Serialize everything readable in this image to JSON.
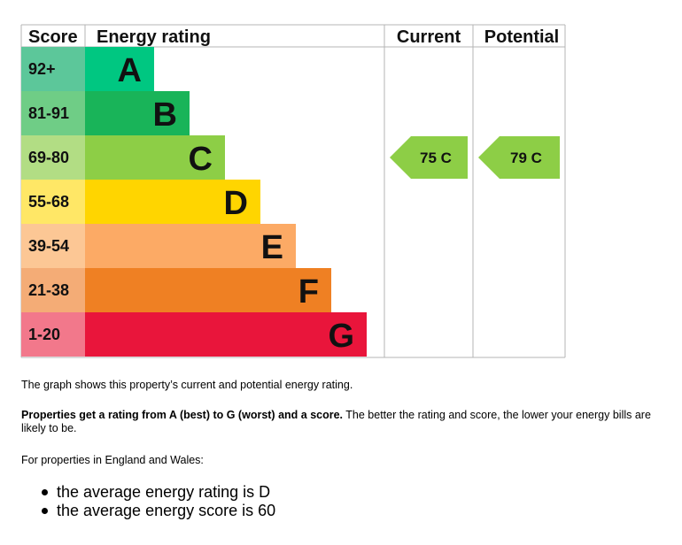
{
  "chart_data": {
    "type": "energy-rating",
    "headers": {
      "score": "Score",
      "rating": "Energy rating",
      "current": "Current",
      "potential": "Potential"
    },
    "bands": [
      {
        "score": "92+",
        "letter": "A",
        "score_color": "#5cc79a",
        "bar_color": "#00c781"
      },
      {
        "score": "81-91",
        "letter": "B",
        "score_color": "#6fcd86",
        "bar_color": "#19b459"
      },
      {
        "score": "69-80",
        "letter": "C",
        "score_color": "#b2dd84",
        "bar_color": "#8dce46"
      },
      {
        "score": "55-68",
        "letter": "D",
        "score_color": "#ffe766",
        "bar_color": "#ffd500"
      },
      {
        "score": "39-54",
        "letter": "E",
        "score_color": "#fcc795",
        "bar_color": "#fcaa65"
      },
      {
        "score": "21-38",
        "letter": "F",
        "score_color": "#f4ac76",
        "bar_color": "#ef8023"
      },
      {
        "score": "1-20",
        "letter": "G",
        "score_color": "#f2788b",
        "bar_color": "#e9153b"
      }
    ],
    "current": {
      "value": 75,
      "letter": "C",
      "label": "75  C",
      "color": "#8dce46"
    },
    "potential": {
      "value": 79,
      "letter": "C",
      "label": "79  C",
      "color": "#8dce46"
    },
    "border_color": "#b4b4b4"
  },
  "text": {
    "graph_note": "The graph shows this property’s current and potential energy rating.",
    "rating_bold": "Properties get a rating from A (best) to G (worst) and a score.",
    "rating_rest": " The better the rating and score, the lower your energy bills are likely to be.",
    "england_wales": "For properties in England and Wales:",
    "average_rating": "the average energy rating is D",
    "average_score": "the average energy score is 60"
  }
}
